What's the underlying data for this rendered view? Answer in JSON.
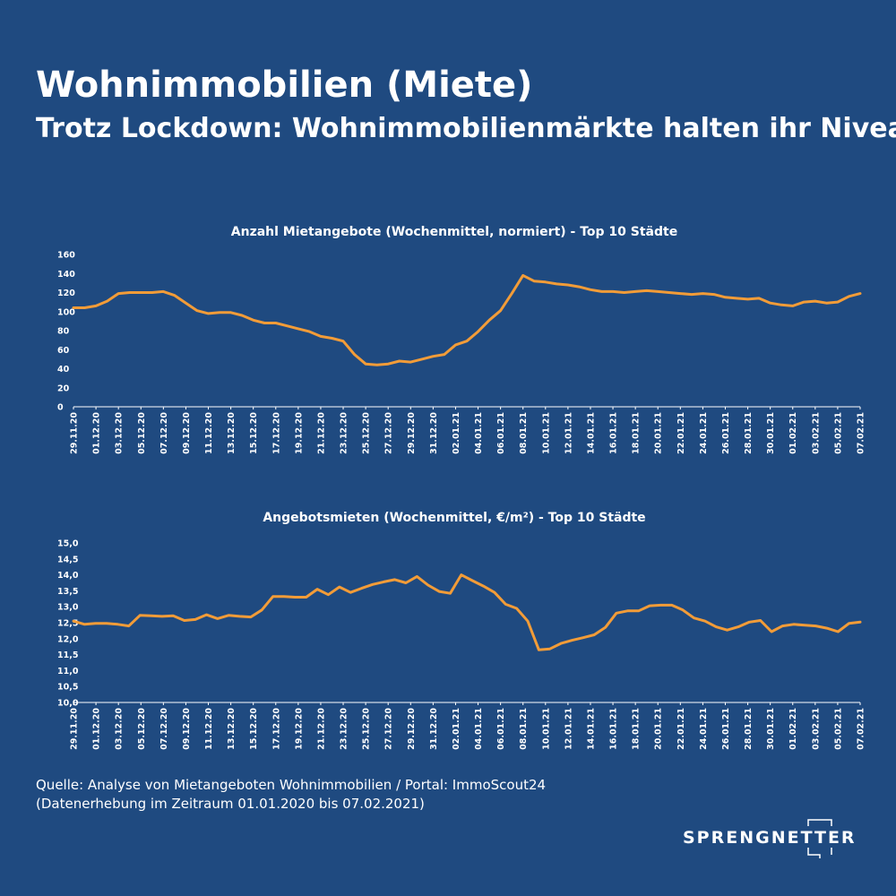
{
  "header": {
    "title": "Wohnimmobilien (Miete)",
    "subtitle": "Trotz Lockdown: Wohnimmobilienmärkte halten ihr Niveau"
  },
  "chart_data": [
    {
      "type": "line",
      "title": "Anzahl Mietangebote (Wochenmittel, normiert) - Top 10 Städte",
      "xlabel": "",
      "ylabel": "",
      "ylim": [
        0,
        160
      ],
      "yticks": [
        "0",
        "20",
        "40",
        "60",
        "80",
        "100",
        "120",
        "140",
        "160"
      ],
      "xtick_labels": [
        "29.11.20",
        "01.12.20",
        "03.12.20",
        "05.12.20",
        "07.12.20",
        "09.12.20",
        "11.12.20",
        "13.12.20",
        "15.12.20",
        "17.12.20",
        "19.12.20",
        "21.12.20",
        "23.12.20",
        "25.12.20",
        "27.12.20",
        "29.12.20",
        "31.12.20",
        "02.01.21",
        "04.01.21",
        "06.01.21",
        "08.01.21",
        "10.01.21",
        "12.01.21",
        "14.01.21",
        "16.01.21",
        "18.01.21",
        "20.01.21",
        "22.01.21",
        "24.01.21",
        "26.01.21",
        "28.01.21",
        "30.01.21",
        "01.02.21",
        "03.02.21",
        "05.02.21",
        "07.02.21"
      ],
      "x_start": "29.11.20",
      "x_end": "07.02.21",
      "grid": false,
      "color": "#f29c38",
      "values": [
        104,
        104,
        106,
        111,
        119,
        120,
        120,
        120,
        121,
        117,
        109,
        101,
        98,
        99,
        99,
        96,
        91,
        88,
        88,
        85,
        82,
        79,
        74,
        72,
        69,
        55,
        45,
        44,
        45,
        48,
        47,
        50,
        53,
        55,
        65,
        69,
        79,
        91,
        101,
        119,
        138,
        132,
        131,
        129,
        128,
        126,
        123,
        121,
        121,
        120,
        121,
        122,
        121,
        120,
        119,
        118,
        119,
        118,
        115,
        114,
        113,
        114,
        109,
        107,
        106,
        110,
        111,
        109,
        110,
        116,
        119
      ]
    },
    {
      "type": "line",
      "title": "Angebotsmieten (Wochenmittel, €/m²) - Top 10 Städte",
      "xlabel": "",
      "ylabel": "",
      "ylim": [
        10.0,
        15.0
      ],
      "yticks": [
        "10,0",
        "10,5",
        "11,0",
        "11,5",
        "12,0",
        "12,5",
        "13,0",
        "13,5",
        "14,0",
        "14,5",
        "15,0"
      ],
      "xtick_labels": [
        "29.11.20",
        "01.12.20",
        "03.12.20",
        "05.12.20",
        "07.12.20",
        "09.12.20",
        "11.12.20",
        "13.12.20",
        "15.12.20",
        "17.12.20",
        "19.12.20",
        "21.12.20",
        "23.12.20",
        "25.12.20",
        "27.12.20",
        "29.12.20",
        "31.12.20",
        "02.01.21",
        "04.01.21",
        "06.01.21",
        "08.01.21",
        "10.01.21",
        "12.01.21",
        "14.01.21",
        "16.01.21",
        "18.01.21",
        "20.01.21",
        "22.01.21",
        "24.01.21",
        "26.01.21",
        "28.01.21",
        "30.01.21",
        "01.02.21",
        "03.02.21",
        "05.02.21",
        "07.02.21"
      ],
      "x_start": "29.11.20",
      "x_end": "07.02.21",
      "grid": false,
      "color": "#f29c38",
      "values": [
        12.55,
        12.45,
        12.48,
        12.48,
        12.45,
        12.4,
        12.73,
        12.72,
        12.7,
        12.72,
        12.57,
        12.6,
        12.75,
        12.63,
        12.73,
        12.7,
        12.68,
        12.9,
        13.32,
        13.32,
        13.3,
        13.3,
        13.55,
        13.38,
        13.62,
        13.45,
        13.58,
        13.7,
        13.78,
        13.85,
        13.75,
        13.95,
        13.68,
        13.48,
        13.42,
        14.0,
        13.82,
        13.65,
        13.45,
        13.08,
        12.95,
        12.55,
        11.65,
        11.68,
        11.85,
        11.95,
        12.03,
        12.12,
        12.35,
        12.8,
        12.87,
        12.87,
        13.03,
        13.05,
        13.05,
        12.9,
        12.65,
        12.55,
        12.37,
        12.27,
        12.37,
        12.52,
        12.57,
        12.22,
        12.4,
        12.45,
        12.42,
        12.4,
        12.33,
        12.22,
        12.48,
        12.52
      ]
    }
  ],
  "footer": {
    "source_line1": "Quelle: Analyse von Mietangeboten Wohnimmobilien / Portal: ImmoScout24",
    "source_line2": "(Datenerhebung im Zeitraum 01.01.2020 bis  07.02.2021)",
    "brand": "SPRENGNETTER"
  }
}
